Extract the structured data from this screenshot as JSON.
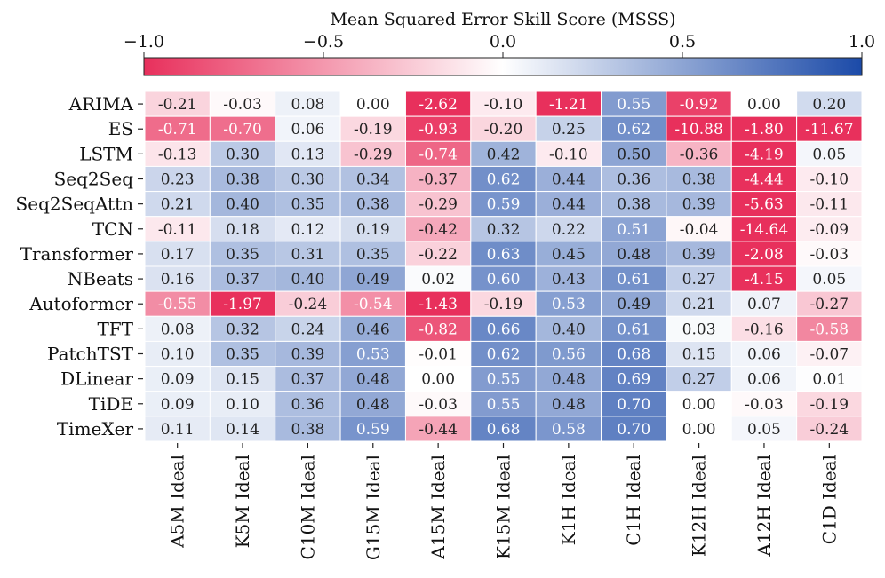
{
  "chart_data": {
    "type": "heatmap",
    "title": "Mean Squared Error Skill Score (MSSS)",
    "colorbar": {
      "range": [
        -1.0,
        1.0
      ],
      "tick_labels": [
        "−1.0",
        "−0.5",
        "0.0",
        "0.5",
        "1.0"
      ],
      "tick_values": [
        -1.0,
        -0.5,
        0.0,
        0.5,
        1.0
      ],
      "colors": {
        "negative": "#e8305c",
        "zero": "#ffffff",
        "positive": "#1b4aa8"
      }
    },
    "rows": [
      "ARIMA",
      "ES",
      "LSTM",
      "Seq2Seq",
      "Seq2SeqAttn",
      "TCN",
      "Transformer",
      "NBeats",
      "Autoformer",
      "TFT",
      "PatchTST",
      "DLinear",
      "TiDE",
      "TimeXer"
    ],
    "columns": [
      "A5M Ideal",
      "K5M Ideal",
      "C10M Ideal",
      "G15M Ideal",
      "A15M Ideal",
      "K15M Ideal",
      "K1H Ideal",
      "C1H Ideal",
      "K12H Ideal",
      "A12H Ideal",
      "C1D Ideal"
    ],
    "values": [
      [
        -0.21,
        -0.03,
        0.08,
        -0.0,
        -2.62,
        -0.1,
        -1.21,
        0.55,
        -0.92,
        0.0,
        0.2
      ],
      [
        -0.71,
        -0.7,
        0.06,
        -0.19,
        -0.93,
        -0.2,
        0.25,
        0.62,
        -10.88,
        -1.8,
        -11.67
      ],
      [
        -0.13,
        0.3,
        0.13,
        -0.29,
        -0.74,
        0.42,
        -0.1,
        0.5,
        -0.36,
        -4.19,
        0.05
      ],
      [
        0.23,
        0.38,
        0.3,
        0.34,
        -0.37,
        0.62,
        0.44,
        0.36,
        0.38,
        -4.44,
        -0.1
      ],
      [
        0.21,
        0.4,
        0.35,
        0.38,
        -0.29,
        0.59,
        0.44,
        0.38,
        0.39,
        -5.63,
        -0.11
      ],
      [
        -0.11,
        0.18,
        0.12,
        0.19,
        -0.42,
        0.32,
        0.22,
        0.51,
        -0.04,
        -14.64,
        -0.09
      ],
      [
        0.17,
        0.35,
        0.31,
        0.35,
        -0.22,
        0.63,
        0.45,
        0.48,
        0.39,
        -2.08,
        -0.03
      ],
      [
        0.16,
        0.37,
        0.4,
        0.49,
        0.02,
        0.6,
        0.43,
        0.61,
        0.27,
        -4.15,
        0.05
      ],
      [
        -0.55,
        -1.97,
        -0.24,
        -0.54,
        -1.43,
        -0.19,
        0.53,
        0.49,
        0.21,
        0.07,
        -0.27
      ],
      [
        0.08,
        0.32,
        0.24,
        0.46,
        -0.82,
        0.66,
        0.4,
        0.61,
        0.03,
        -0.16,
        -0.58
      ],
      [
        0.1,
        0.35,
        0.39,
        0.53,
        -0.01,
        0.62,
        0.56,
        0.68,
        0.15,
        0.06,
        -0.07
      ],
      [
        0.09,
        0.15,
        0.37,
        0.48,
        -0.0,
        0.55,
        0.48,
        0.69,
        0.27,
        0.06,
        0.01
      ],
      [
        0.09,
        0.1,
        0.36,
        0.48,
        -0.03,
        0.55,
        0.48,
        0.7,
        -0.0,
        -0.03,
        -0.19
      ],
      [
        0.11,
        0.14,
        0.38,
        0.59,
        -0.44,
        0.68,
        0.58,
        0.7,
        -0.0,
        0.05,
        -0.24
      ]
    ]
  }
}
